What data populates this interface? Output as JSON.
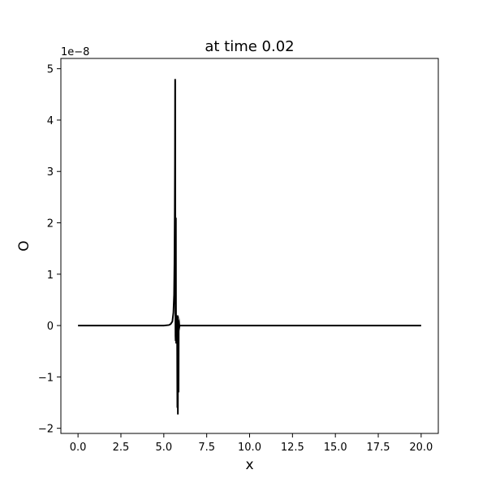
{
  "chart_data": {
    "type": "line",
    "title": "at time 0.02",
    "xlabel": "x",
    "ylabel": "O",
    "y_offset_label": "1e−8",
    "xlim": [
      -1.0,
      21.0
    ],
    "ylim": [
      -2.1,
      5.2
    ],
    "x_ticks": [
      0.0,
      2.5,
      5.0,
      7.5,
      10.0,
      12.5,
      15.0,
      17.5,
      20.0
    ],
    "x_tick_labels": [
      "0.0",
      "2.5",
      "5.0",
      "7.5",
      "10.0",
      "12.5",
      "15.0",
      "17.5",
      "20.0"
    ],
    "y_ticks": [
      -2,
      -1,
      0,
      1,
      2,
      3,
      4,
      5
    ],
    "y_tick_labels": [
      "−2",
      "−1",
      "0",
      "1",
      "2",
      "3",
      "4",
      "5"
    ],
    "grid": false,
    "line_color": "#000000",
    "series": [
      {
        "x": [
          0.0,
          5.0,
          5.3,
          5.4,
          5.5,
          5.56,
          5.6,
          5.62,
          5.64,
          5.65,
          5.66,
          5.665,
          5.67,
          5.675,
          5.68,
          5.69,
          5.7,
          5.705,
          5.71,
          5.72,
          5.73,
          5.74,
          5.75,
          5.76,
          5.77,
          5.78,
          5.79,
          5.8,
          5.81,
          5.82,
          5.83,
          5.84,
          5.85,
          5.86,
          5.87,
          5.88,
          5.89,
          5.9,
          5.91,
          5.92,
          6.0,
          10.0,
          20.0
        ],
        "y": [
          0.0,
          0.0,
          0.01,
          0.03,
          0.08,
          0.25,
          0.6,
          1.2,
          2.3,
          3.2,
          4.8,
          4.75,
          2.5,
          0.5,
          -0.2,
          -0.3,
          0.3,
          2.1,
          0.4,
          -0.35,
          0.05,
          -0.15,
          0.05,
          -0.3,
          0.1,
          -0.5,
          -1.6,
          0.2,
          -0.8,
          -1.73,
          0.18,
          -0.1,
          -0.6,
          -1.3,
          0.1,
          -0.02,
          0.0,
          0.02,
          -0.02,
          0.0,
          0.0,
          0.0,
          0.0
        ]
      }
    ]
  }
}
